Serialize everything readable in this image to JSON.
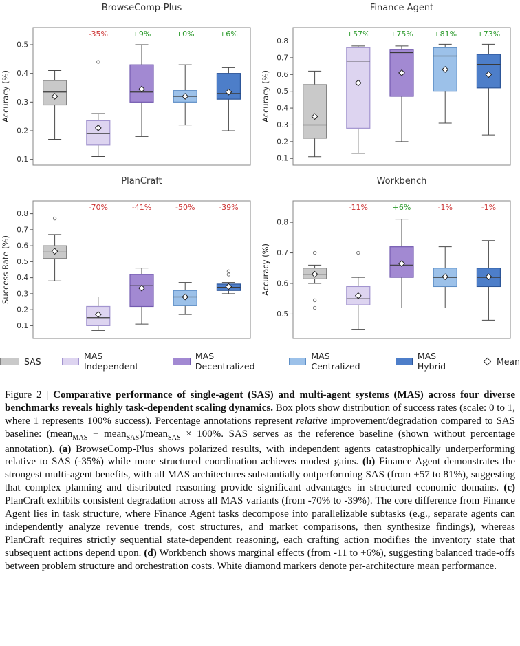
{
  "figure": {
    "label": "Figure 2",
    "colors": {
      "annotation_red": "#cc3333",
      "annotation_green": "#2e9b2e",
      "spine": "#848484",
      "whisker": "#4a4a4a",
      "median": "#3a3a3a",
      "mean_fill": "#ffffff",
      "mean_edge": "#222222",
      "flier": "#6a6a6a"
    }
  },
  "legend": {
    "items": [
      {
        "label": "SAS",
        "fill": "#c9c9c9",
        "edge": "#848484"
      },
      {
        "label": "MAS Independent",
        "fill": "#ddd4f0",
        "edge": "#a294cf"
      },
      {
        "label": "MAS Decentralized",
        "fill": "#a289d2",
        "edge": "#735ab0"
      },
      {
        "label": "MAS Centralized",
        "fill": "#9cc1e9",
        "edge": "#5f8fc6"
      },
      {
        "label": "MAS Hybrid",
        "fill": "#4d7ec9",
        "edge": "#2d5699"
      },
      {
        "label": "Mean",
        "marker": "diamond",
        "fill": "#ffffff",
        "edge": "#222222"
      }
    ]
  },
  "chart_data": [
    {
      "type": "box",
      "title": "BrowseComp-Plus",
      "ylabel": "Accuracy (%)",
      "ylim": [
        0.08,
        0.56
      ],
      "yticks": [
        0.1,
        0.2,
        0.3,
        0.4,
        0.5
      ],
      "legend_position": "bottom",
      "grid": false,
      "annotations": [
        null,
        {
          "text": "-35%",
          "color": "#cc3333"
        },
        {
          "text": "+9%",
          "color": "#2e9b2e"
        },
        {
          "text": "+0%",
          "color": "#2e9b2e"
        },
        {
          "text": "+6%",
          "color": "#2e9b2e"
        }
      ],
      "boxes": [
        {
          "name": "SAS",
          "whislo": 0.17,
          "q1": 0.29,
          "med": 0.335,
          "q3": 0.375,
          "whishi": 0.41,
          "mean": 0.32,
          "fliers": []
        },
        {
          "name": "MAS Independent",
          "whislo": 0.11,
          "q1": 0.15,
          "med": 0.19,
          "q3": 0.235,
          "whishi": 0.26,
          "mean": 0.21,
          "fliers": [
            0.44
          ]
        },
        {
          "name": "MAS Decentralized",
          "whislo": 0.18,
          "q1": 0.3,
          "med": 0.335,
          "q3": 0.43,
          "whishi": 0.5,
          "mean": 0.345,
          "fliers": []
        },
        {
          "name": "MAS Centralized",
          "whislo": 0.22,
          "q1": 0.3,
          "med": 0.32,
          "q3": 0.34,
          "whishi": 0.43,
          "mean": 0.32,
          "fliers": []
        },
        {
          "name": "MAS Hybrid",
          "whislo": 0.2,
          "q1": 0.31,
          "med": 0.33,
          "q3": 0.4,
          "whishi": 0.42,
          "mean": 0.335,
          "fliers": []
        }
      ]
    },
    {
      "type": "box",
      "title": "Finance Agent",
      "ylabel": "Accuracy (%)",
      "ylim": [
        0.06,
        0.88
      ],
      "yticks": [
        0.1,
        0.2,
        0.3,
        0.4,
        0.5,
        0.6,
        0.7,
        0.8
      ],
      "legend_position": "bottom",
      "grid": false,
      "annotations": [
        null,
        {
          "text": "+57%",
          "color": "#2e9b2e"
        },
        {
          "text": "+75%",
          "color": "#2e9b2e"
        },
        {
          "text": "+81%",
          "color": "#2e9b2e"
        },
        {
          "text": "+73%",
          "color": "#2e9b2e"
        }
      ],
      "boxes": [
        {
          "name": "SAS",
          "whislo": 0.11,
          "q1": 0.22,
          "med": 0.3,
          "q3": 0.54,
          "whishi": 0.62,
          "mean": 0.35,
          "fliers": []
        },
        {
          "name": "MAS Independent",
          "whislo": 0.13,
          "q1": 0.28,
          "med": 0.68,
          "q3": 0.76,
          "whishi": 0.77,
          "mean": 0.55,
          "fliers": []
        },
        {
          "name": "MAS Decentralized",
          "whislo": 0.2,
          "q1": 0.47,
          "med": 0.73,
          "q3": 0.75,
          "whishi": 0.77,
          "mean": 0.61,
          "fliers": []
        },
        {
          "name": "MAS Centralized",
          "whislo": 0.31,
          "q1": 0.5,
          "med": 0.71,
          "q3": 0.76,
          "whishi": 0.78,
          "mean": 0.63,
          "fliers": []
        },
        {
          "name": "MAS Hybrid",
          "whislo": 0.24,
          "q1": 0.52,
          "med": 0.66,
          "q3": 0.72,
          "whishi": 0.78,
          "mean": 0.6,
          "fliers": []
        }
      ]
    },
    {
      "type": "box",
      "title": "PlanCraft",
      "ylabel": "Success Rate (%)",
      "ylim": [
        0.02,
        0.88
      ],
      "yticks": [
        0.1,
        0.2,
        0.3,
        0.4,
        0.5,
        0.6,
        0.7,
        0.8
      ],
      "legend_position": "bottom",
      "grid": false,
      "annotations": [
        null,
        {
          "text": "-70%",
          "color": "#cc3333"
        },
        {
          "text": "-41%",
          "color": "#cc3333"
        },
        {
          "text": "-50%",
          "color": "#cc3333"
        },
        {
          "text": "-39%",
          "color": "#cc3333"
        }
      ],
      "boxes": [
        {
          "name": "SAS",
          "whislo": 0.38,
          "q1": 0.52,
          "med": 0.56,
          "q3": 0.6,
          "whishi": 0.67,
          "mean": 0.565,
          "fliers": [
            0.77
          ]
        },
        {
          "name": "MAS Independent",
          "whislo": 0.07,
          "q1": 0.1,
          "med": 0.15,
          "q3": 0.22,
          "whishi": 0.28,
          "mean": 0.17,
          "fliers": []
        },
        {
          "name": "MAS Decentralized",
          "whislo": 0.11,
          "q1": 0.22,
          "med": 0.35,
          "q3": 0.42,
          "whishi": 0.46,
          "mean": 0.335,
          "fliers": []
        },
        {
          "name": "MAS Centralized",
          "whislo": 0.17,
          "q1": 0.225,
          "med": 0.28,
          "q3": 0.32,
          "whishi": 0.37,
          "mean": 0.28,
          "fliers": []
        },
        {
          "name": "MAS Hybrid",
          "whislo": 0.3,
          "q1": 0.32,
          "med": 0.34,
          "q3": 0.36,
          "whishi": 0.37,
          "mean": 0.345,
          "fliers": [
            0.42,
            0.44
          ]
        }
      ]
    },
    {
      "type": "box",
      "title": "Workbench",
      "ylabel": "Accuracy (%)",
      "ylim": [
        0.42,
        0.87
      ],
      "yticks": [
        0.5,
        0.6,
        0.7,
        0.8
      ],
      "legend_position": "bottom",
      "grid": false,
      "annotations": [
        null,
        {
          "text": "-11%",
          "color": "#cc3333"
        },
        {
          "text": "+6%",
          "color": "#2e9b2e"
        },
        {
          "text": "-1%",
          "color": "#cc3333"
        },
        {
          "text": "-1%",
          "color": "#cc3333"
        }
      ],
      "boxes": [
        {
          "name": "SAS",
          "whislo": 0.6,
          "q1": 0.615,
          "med": 0.63,
          "q3": 0.65,
          "whishi": 0.66,
          "mean": 0.63,
          "fliers": [
            0.52,
            0.545,
            0.7
          ]
        },
        {
          "name": "MAS Independent",
          "whislo": 0.45,
          "q1": 0.53,
          "med": 0.55,
          "q3": 0.59,
          "whishi": 0.62,
          "mean": 0.56,
          "fliers": [
            0.7
          ]
        },
        {
          "name": "MAS Decentralized",
          "whislo": 0.52,
          "q1": 0.62,
          "med": 0.66,
          "q3": 0.72,
          "whishi": 0.81,
          "mean": 0.665,
          "fliers": []
        },
        {
          "name": "MAS Centralized",
          "whislo": 0.52,
          "q1": 0.59,
          "med": 0.62,
          "q3": 0.65,
          "whishi": 0.72,
          "mean": 0.622,
          "fliers": []
        },
        {
          "name": "MAS Hybrid",
          "whislo": 0.48,
          "q1": 0.59,
          "med": 0.62,
          "q3": 0.65,
          "whishi": 0.74,
          "mean": 0.622,
          "fliers": []
        }
      ]
    }
  ],
  "caption": {
    "segments": [
      {
        "t": "Figure 2 | "
      },
      {
        "t": "Comparative performance of single-agent (SAS) and multi-agent systems (MAS) across four diverse benchmarks reveals highly task-dependent scaling dynamics.",
        "b": true
      },
      {
        "t": " Box plots show distribution of success rates (scale: 0 to 1, where 1 represents 100% success). Percentage annotations represent "
      },
      {
        "t": "relative",
        "i": true
      },
      {
        "t": " improvement/degradation compared to SAS baseline: (mean"
      },
      {
        "t": "MAS",
        "sub": true
      },
      {
        "t": " − mean"
      },
      {
        "t": "SAS",
        "sub": true
      },
      {
        "t": ")/mean"
      },
      {
        "t": "SAS",
        "sub": true
      },
      {
        "t": " × 100%. SAS serves as the reference baseline (shown without percentage annotation). "
      },
      {
        "t": "(a)",
        "b": true
      },
      {
        "t": " BrowseComp-Plus shows polarized results, with independent agents catastrophically underperforming relative to SAS (-35%) while more structured coordination achieves modest gains. "
      },
      {
        "t": "(b)",
        "b": true
      },
      {
        "t": " Finance Agent demonstrates the strongest multi-agent benefits, with all MAS architectures substantially outperforming SAS (from +57 to 81%), suggesting that complex planning and distributed reasoning provide significant advantages in structured economic domains. "
      },
      {
        "t": "(c)",
        "b": true
      },
      {
        "t": " PlanCraft exhibits consistent degradation across all MAS variants (from -70% to -39%). The core difference from Finance Agent lies in task structure, where Finance Agent tasks decompose into parallelizable subtasks (e.g., separate agents can independently analyze revenue trends, cost structures, and market comparisons, then synthesize findings), whereas PlanCraft requires strictly sequential state-dependent reasoning, each crafting action modifies the inventory state that subsequent actions depend upon. "
      },
      {
        "t": "(d)",
        "b": true
      },
      {
        "t": " Workbench shows marginal effects (from -11 to +6%), suggesting balanced trade-offs between problem structure and orchestration costs. White diamond markers denote per-architecture mean performance."
      }
    ]
  }
}
